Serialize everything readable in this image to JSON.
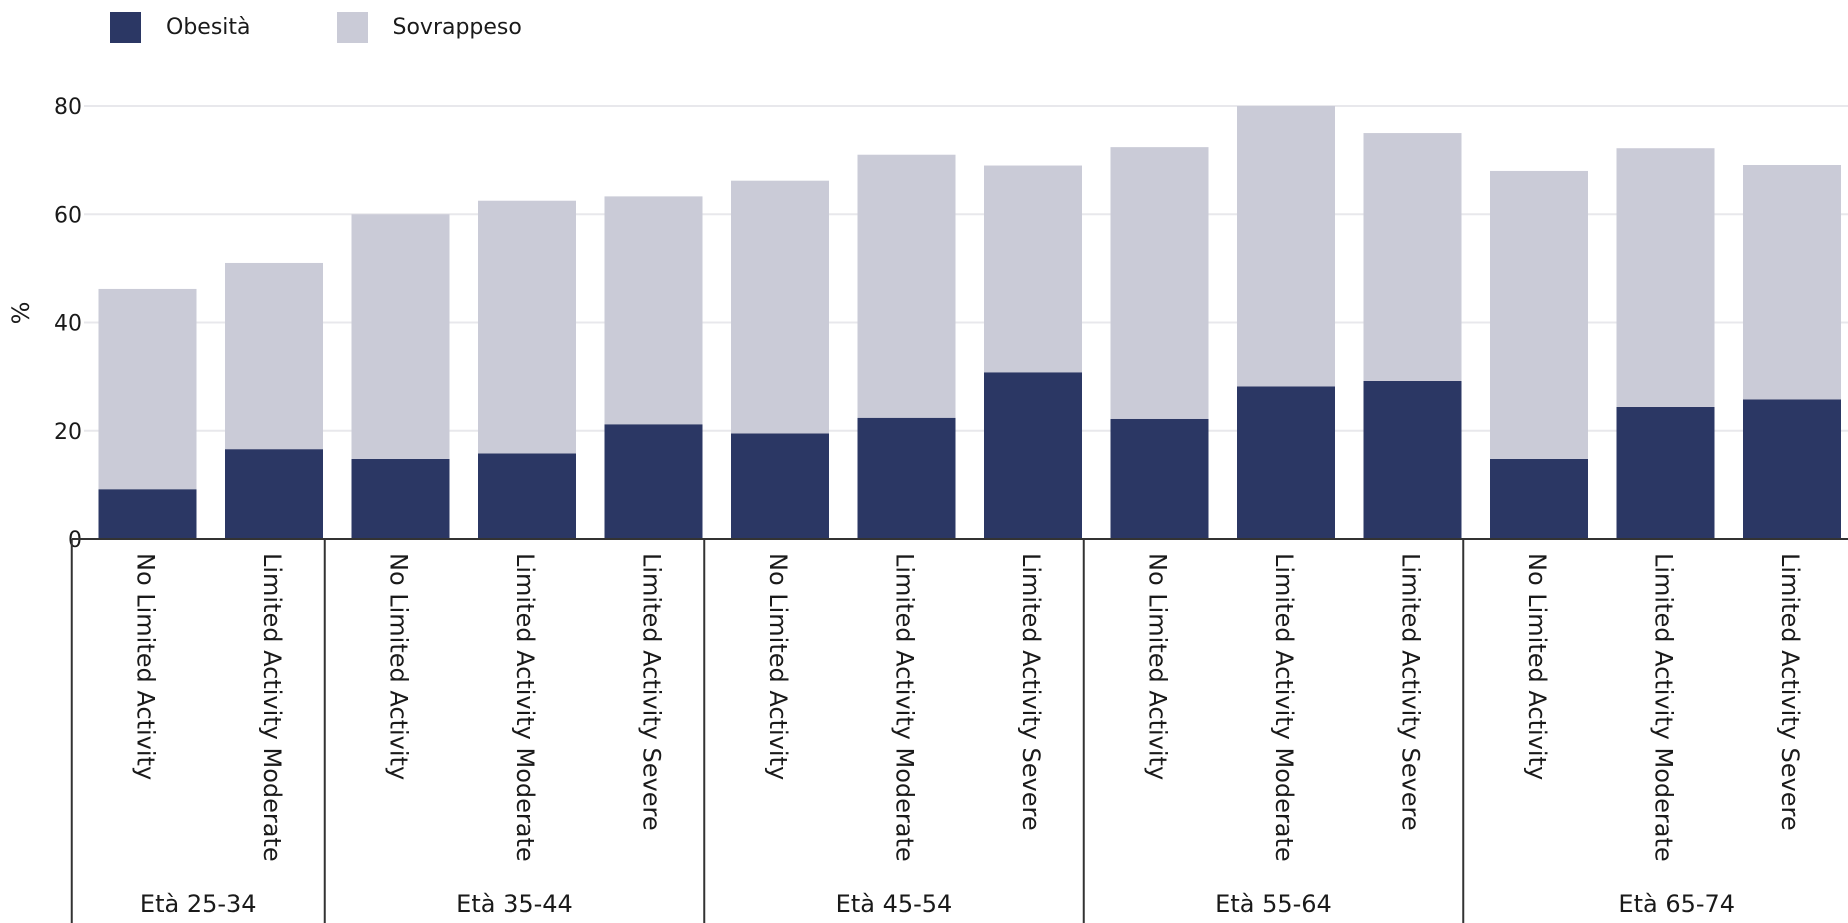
{
  "legend": [
    {
      "name": "Obesità",
      "color": "#2b3764"
    },
    {
      "name": "Sovrappeso",
      "color": "#cacbd7"
    }
  ],
  "chart_data": {
    "type": "bar",
    "stacked": true,
    "ylabel": "%",
    "ylim": [
      0,
      80
    ],
    "yticks": [
      0,
      20,
      40,
      60,
      80
    ],
    "grid": true,
    "legend_position": "top-left",
    "groups": [
      {
        "label": "Età 25-34",
        "categories": [
          "No Limited Activity",
          "Limited Activity Moderate"
        ]
      },
      {
        "label": "Età 35-44",
        "categories": [
          "No Limited Activity",
          "Limited Activity Moderate",
          "Limited Activity Severe"
        ]
      },
      {
        "label": "Età 45-54",
        "categories": [
          "No Limited Activity",
          "Limited Activity Moderate",
          "Limited Activity Severe"
        ]
      },
      {
        "label": "Età 55-64",
        "categories": [
          "No Limited Activity",
          "Limited Activity Moderate",
          "Limited Activity Severe"
        ]
      },
      {
        "label": "Età 65-74",
        "categories": [
          "No Limited Activity",
          "Limited Activity Moderate",
          "Limited Activity Severe"
        ]
      }
    ],
    "series": [
      {
        "name": "Obesità",
        "color": "#2b3764",
        "values": [
          9.2,
          16.6,
          14.8,
          15.8,
          21.2,
          19.5,
          22.4,
          30.8,
          22.2,
          28.2,
          29.2,
          14.8,
          24.4,
          25.8
        ]
      },
      {
        "name": "Sovrappeso",
        "color": "#cacbd7",
        "values": [
          37.0,
          34.4,
          45.2,
          46.7,
          42.1,
          46.7,
          48.6,
          38.2,
          50.2,
          51.8,
          45.8,
          53.2,
          47.8,
          43.3
        ]
      }
    ]
  }
}
